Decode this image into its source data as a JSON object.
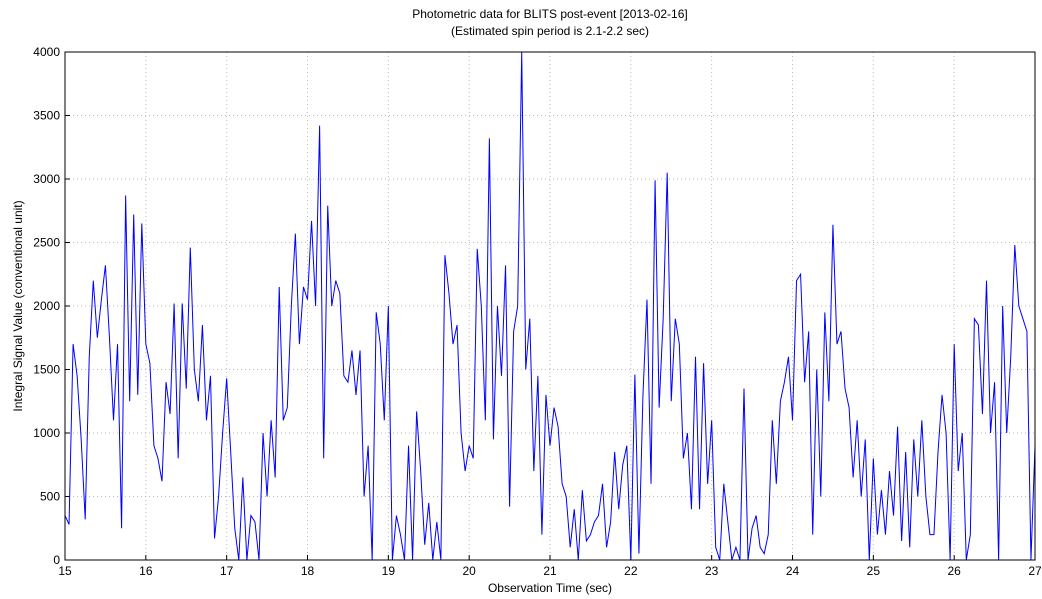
{
  "chart_data": {
    "type": "line",
    "title": "Photometric data for BLITS post-event [2013-02-16]",
    "subtitle": "(Estimated spin period is 2.1-2.2 sec)",
    "x_label": "Observation Time (sec)",
    "y_label": "Integral Signal Value (conventional unit)",
    "xlim": [
      15,
      27
    ],
    "ylim": [
      0,
      4000
    ],
    "xticks": [
      15,
      16,
      17,
      18,
      19,
      20,
      21,
      22,
      23,
      24,
      25,
      26,
      27
    ],
    "yticks": [
      0,
      500,
      1000,
      1500,
      2000,
      2500,
      3000,
      3500,
      4000
    ],
    "grid": true,
    "x": [
      15,
      15.05,
      15.1,
      15.15,
      15.2,
      15.25,
      15.3,
      15.35,
      15.4,
      15.45,
      15.5,
      15.55,
      15.6,
      15.65,
      15.7,
      15.75,
      15.8,
      15.85,
      15.9,
      15.95,
      16,
      16.05,
      16.1,
      16.15,
      16.2,
      16.25,
      16.3,
      16.35,
      16.4,
      16.45,
      16.5,
      16.55,
      16.6,
      16.65,
      16.7,
      16.75,
      16.8,
      16.85,
      16.9,
      16.95,
      17,
      17.05,
      17.1,
      17.15,
      17.2,
      17.25,
      17.3,
      17.35,
      17.4,
      17.45,
      17.5,
      17.55,
      17.6,
      17.65,
      17.7,
      17.75,
      17.8,
      17.85,
      17.9,
      17.95,
      18,
      18.05,
      18.1,
      18.15,
      18.2,
      18.25,
      18.3,
      18.35,
      18.4,
      18.45,
      18.5,
      18.55,
      18.6,
      18.65,
      18.7,
      18.75,
      18.8,
      18.85,
      18.9,
      18.95,
      19,
      19.05,
      19.1,
      19.15,
      19.2,
      19.25,
      19.3,
      19.35,
      19.4,
      19.45,
      19.5,
      19.55,
      19.6,
      19.65,
      19.7,
      19.75,
      19.8,
      19.85,
      19.9,
      19.95,
      20,
      20.05,
      20.1,
      20.15,
      20.2,
      20.25,
      20.3,
      20.35,
      20.4,
      20.45,
      20.5,
      20.55,
      20.6,
      20.65,
      20.7,
      20.75,
      20.8,
      20.85,
      20.9,
      20.95,
      21,
      21.05,
      21.1,
      21.15,
      21.2,
      21.25,
      21.3,
      21.35,
      21.4,
      21.45,
      21.5,
      21.55,
      21.6,
      21.65,
      21.7,
      21.75,
      21.8,
      21.85,
      21.9,
      21.95,
      22,
      22.05,
      22.1,
      22.15,
      22.2,
      22.25,
      22.3,
      22.35,
      22.4,
      22.45,
      22.5,
      22.55,
      22.6,
      22.65,
      22.7,
      22.75,
      22.8,
      22.85,
      22.9,
      22.95,
      23,
      23.05,
      23.1,
      23.15,
      23.2,
      23.25,
      23.3,
      23.35,
      23.4,
      23.45,
      23.5,
      23.55,
      23.6,
      23.65,
      23.7,
      23.75,
      23.8,
      23.85,
      23.9,
      23.95,
      24,
      24.05,
      24.1,
      24.15,
      24.2,
      24.25,
      24.3,
      24.35,
      24.4,
      24.45,
      24.5,
      24.55,
      24.6,
      24.65,
      24.7,
      24.75,
      24.8,
      24.85,
      24.9,
      24.95,
      25,
      25.05,
      25.1,
      25.15,
      25.2,
      25.25,
      25.3,
      25.35,
      25.4,
      25.45,
      25.5,
      25.55,
      25.6,
      25.65,
      25.7,
      25.75,
      25.8,
      25.85,
      25.9,
      25.95,
      26,
      26.05,
      26.1,
      26.15,
      26.2,
      26.25,
      26.3,
      26.35,
      26.4,
      26.45,
      26.5,
      26.55,
      26.6,
      26.65,
      26.7,
      26.75,
      26.8,
      26.85,
      26.9,
      26.95,
      27
    ],
    "series": [
      {
        "color": "#0000ff",
        "values": [
          350,
          280,
          1700,
          1450,
          950,
          320,
          1600,
          2200,
          1750,
          2050,
          2320,
          1750,
          1100,
          1700,
          250,
          2870,
          1250,
          2720,
          1300,
          2650,
          1700,
          1550,
          900,
          800,
          620,
          1400,
          1150,
          2020,
          800,
          2020,
          1350,
          2460,
          1500,
          1250,
          1850,
          1100,
          1450,
          170,
          500,
          1000,
          1430,
          850,
          250,
          0,
          650,
          0,
          350,
          300,
          0,
          1000,
          500,
          1100,
          650,
          2150,
          1100,
          1200,
          2000,
          2570,
          1700,
          2150,
          2050,
          2670,
          2000,
          3420,
          800,
          2790,
          2000,
          2200,
          2100,
          1450,
          1400,
          1650,
          1300,
          1650,
          500,
          900,
          0,
          1950,
          1700,
          1100,
          2000,
          0,
          350,
          200,
          0,
          900,
          0,
          1170,
          700,
          120,
          450,
          0,
          300,
          0,
          2400,
          2100,
          1700,
          1850,
          1000,
          700,
          900,
          800,
          2450,
          2000,
          1100,
          3320,
          950,
          2000,
          1450,
          2320,
          420,
          1800,
          2000,
          4000,
          1500,
          1900,
          700,
          1450,
          200,
          1300,
          900,
          1200,
          1050,
          600,
          500,
          100,
          400,
          0,
          550,
          150,
          200,
          300,
          350,
          600,
          100,
          300,
          850,
          400,
          750,
          900,
          0,
          1460,
          50,
          1300,
          2050,
          600,
          2990,
          1200,
          1900,
          3050,
          1250,
          1900,
          1700,
          800,
          1000,
          400,
          1600,
          400,
          1550,
          600,
          1100,
          100,
          0,
          600,
          300,
          0,
          100,
          0,
          1350,
          0,
          250,
          350,
          100,
          50,
          200,
          1100,
          600,
          1250,
          1400,
          1600,
          1100,
          2200,
          2250,
          1400,
          1800,
          200,
          1500,
          500,
          1950,
          1250,
          2640,
          1700,
          1800,
          1350,
          1200,
          650,
          1100,
          500,
          950,
          0,
          800,
          200,
          550,
          200,
          700,
          350,
          1050,
          150,
          850,
          100,
          950,
          500,
          1100,
          500,
          200,
          200,
          850,
          1300,
          1000,
          0,
          1700,
          700,
          1000,
          0,
          200,
          1900,
          1850,
          1150,
          2200,
          1000,
          1400,
          0,
          2000,
          1000,
          1600,
          2480,
          2000,
          1900,
          1800,
          0,
          900
        ]
      }
    ]
  }
}
